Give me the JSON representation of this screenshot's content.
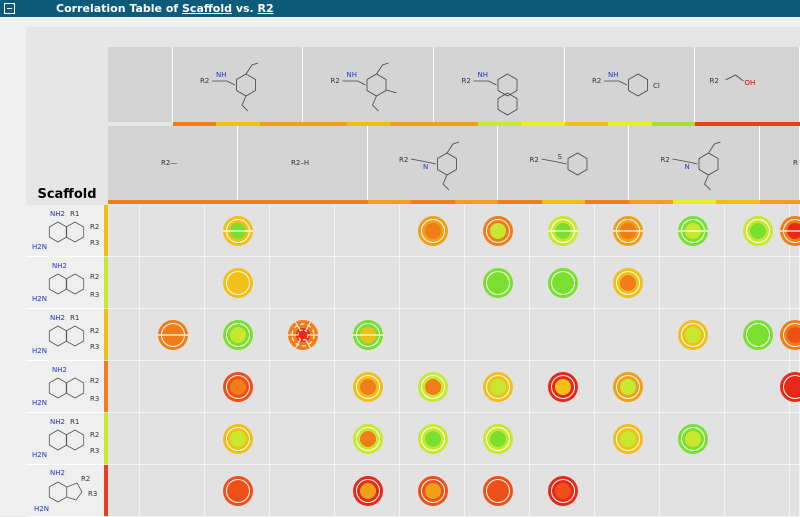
{
  "window": {
    "title_prefix": "Correlation Table of ",
    "title_x": "Scaffold",
    "title_mid": " vs. ",
    "title_y": "R2"
  },
  "corner_label": "Scaffold",
  "r2_header_row1": [
    {
      "label": "R2",
      "sub": "NH",
      "desc": "2,5-dimethoxybenzylamine",
      "bar": [
        "#f07d18",
        "#f5c010",
        "#f0a018"
      ]
    },
    {
      "label": "R2",
      "sub": "NH",
      "desc": "3,4,5-trimethoxybenzylamine",
      "bar": [
        "#f0a018",
        "#f0c010",
        "#f0a018"
      ]
    },
    {
      "label": "R2",
      "sub": "NH",
      "desc": "naphthylmethylamine",
      "bar": [
        "#f0a018",
        "#c8e830",
        "#e8f020"
      ]
    },
    {
      "label": "R2",
      "sub": "NH",
      "het": "Cl",
      "desc": "4-chloroaniline",
      "bar": [
        "#f0c018",
        "#e8f020",
        "#a8e030"
      ]
    },
    {
      "label": "R2",
      "het": "OH",
      "desc": "ethanol",
      "bar": [
        "#e8401a",
        "#e8401a",
        "#e8401a"
      ]
    }
  ],
  "r2_header_row2": [
    {
      "label": "R2—",
      "desc": "methyl",
      "bar": [
        "#f07d18",
        "#f07d18"
      ]
    },
    {
      "label": "R2–H",
      "desc": "hydrogen",
      "bar": [
        "#f07d18",
        "#f07d18"
      ]
    },
    {
      "label": "R2",
      "sub": "N",
      "desc": "N-methyl-2,5-dimethoxybenzylamine",
      "bar": [
        "#f0a018",
        "#f07d18",
        "#f0a018"
      ]
    },
    {
      "label": "R2",
      "het": "S",
      "desc": "benzylthio",
      "bar": [
        "#f07d18",
        "#f0c010",
        "#f07d18"
      ]
    },
    {
      "label": "R2",
      "sub": "N",
      "desc": "N-methyl-3,4,5-trimethoxybenzylamine",
      "bar": [
        "#f0a018",
        "#e8f020",
        "#f0c010"
      ]
    },
    {
      "label": "R",
      "desc": "cut off",
      "bar": [
        "#f0a018"
      ]
    }
  ],
  "scaffolds": [
    {
      "name": "pyrido[2,3-d]pyrimidine-2,4-diamine",
      "labels": [
        "NH2",
        "R1",
        "R2",
        "H2N",
        "R3"
      ],
      "bar": "#f0c010"
    },
    {
      "name": "pyrido[2,3-d]pyrimidine variant",
      "labels": [
        "NH2",
        "R2",
        "H2N",
        "R3"
      ],
      "bar": "#c8e830"
    },
    {
      "name": "quinazoline-2,4-diamine",
      "labels": [
        "NH2",
        "R1",
        "R2",
        "H2N",
        "R3"
      ],
      "bar": "#f0c010"
    },
    {
      "name": "pyrido[3,2-d]pyrimidine",
      "labels": [
        "NH2",
        "R2",
        "H2N",
        "R3"
      ],
      "bar": "#f07d18"
    },
    {
      "name": "tetrahydroquinazoline",
      "labels": [
        "NH2",
        "R1",
        "R2",
        "H2N",
        "R3"
      ],
      "bar": "#c8e830"
    },
    {
      "name": "furo[2,3-d]pyrimidine",
      "labels": [
        "NH2",
        "R2",
        "R3",
        "H2N"
      ],
      "bar": "#e8401a"
    }
  ],
  "cells": [
    [
      null,
      null,
      {
        "o": "#f0c018",
        "i": "#7ae030",
        "split": true
      },
      null,
      null,
      {
        "o": "#f0a018",
        "i": "#f07d18"
      },
      {
        "o": "#f07d18",
        "i": "#c8e830"
      },
      {
        "o": "#c8e830",
        "i": "#7ae030",
        "split": true
      },
      {
        "o": "#f0a018",
        "i": "#f07d18",
        "split": true
      },
      {
        "o": "#7ae030",
        "i": "#c8e830",
        "split": true
      },
      {
        "o": "#c8e830",
        "i": "#7ae030"
      },
      {
        "o": "#f07d18",
        "i": "#e82818",
        "split": true
      }
    ],
    [
      null,
      null,
      {
        "o": "#f0c018",
        "i": "#f0c018"
      },
      null,
      null,
      null,
      {
        "o": "#7ae030",
        "i": "#7ae030"
      },
      {
        "o": "#7ae030",
        "i": "#7ae030"
      },
      {
        "o": "#f0c018",
        "i": "#f07d18"
      },
      null,
      null,
      null
    ],
    [
      null,
      {
        "o": "#f07d18",
        "i": "#f07d18",
        "split": true
      },
      {
        "o": "#7ae030",
        "i": "#c8e830"
      },
      {
        "o": "#f07d18",
        "i": "#e82818",
        "broken": true
      },
      {
        "o": "#7ae030",
        "i": "#f0c018",
        "split": true
      },
      null,
      null,
      null,
      null,
      {
        "o": "#f0c018",
        "i": "#c8e830"
      },
      {
        "o": "#7ae030",
        "i": "#7ae030"
      },
      {
        "o": "#f07d18",
        "i": "#f05018"
      }
    ],
    [
      null,
      null,
      {
        "o": "#f05018",
        "i": "#f07d18"
      },
      null,
      {
        "o": "#f0c018",
        "i": "#f07d18"
      },
      {
        "o": "#c8e830",
        "i": "#f07d18"
      },
      {
        "o": "#f0c018",
        "i": "#c8e830"
      },
      {
        "o": "#e82818",
        "i": "#f0c018"
      },
      {
        "o": "#f0a018",
        "i": "#c8e830"
      },
      null,
      null,
      {
        "o": "#e82818",
        "i": "#e82818"
      }
    ],
    [
      null,
      null,
      {
        "o": "#f0c018",
        "i": "#c8e830"
      },
      null,
      {
        "o": "#c8e830",
        "i": "#f07d18"
      },
      {
        "o": "#c8e830",
        "i": "#7ae030"
      },
      {
        "o": "#c8e830",
        "i": "#7ae030"
      },
      null,
      {
        "o": "#f0c018",
        "i": "#c8e830"
      },
      {
        "o": "#7ae030",
        "i": "#c8e830"
      },
      null,
      null
    ],
    [
      null,
      null,
      {
        "o": "#f05018",
        "i": "#f05018"
      },
      null,
      {
        "o": "#e82818",
        "i": "#f0a018"
      },
      {
        "o": "#f05018",
        "i": "#f0a018"
      },
      {
        "o": "#f05018",
        "i": "#f05018"
      },
      {
        "o": "#e82818",
        "i": "#f05018"
      },
      null,
      null,
      null,
      null
    ]
  ]
}
